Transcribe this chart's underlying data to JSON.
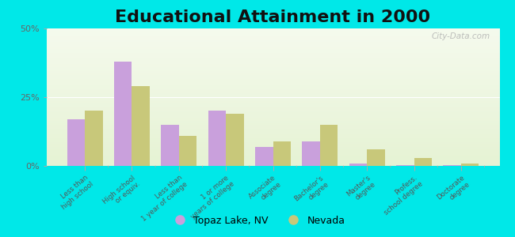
{
  "title": "Educational Attainment in 2000",
  "categories": [
    "Less than\nhigh school",
    "High school\nor equiv.",
    "Less than\n1 year of college",
    "1 or more\nyears of college",
    "Associate\ndegree",
    "Bachelor's\ndegree",
    "Master's\ndegree",
    "Profess.\nschool degree",
    "Doctorate\ndegree"
  ],
  "topaz_values": [
    17,
    38,
    15,
    20,
    7,
    9,
    1,
    0.3,
    0.3
  ],
  "nevada_values": [
    20,
    29,
    11,
    19,
    9,
    15,
    6,
    3,
    1
  ],
  "topaz_color": "#c9a0dc",
  "nevada_color": "#c8c87a",
  "background_outer": "#00e8e8",
  "ylim": [
    0,
    50
  ],
  "yticks": [
    0,
    25,
    50
  ],
  "ytick_labels": [
    "0%",
    "25%",
    "50%"
  ],
  "legend_topaz": "Topaz Lake, NV",
  "legend_nevada": "Nevada",
  "title_fontsize": 16,
  "bar_width": 0.38,
  "watermark": "City-Data.com"
}
